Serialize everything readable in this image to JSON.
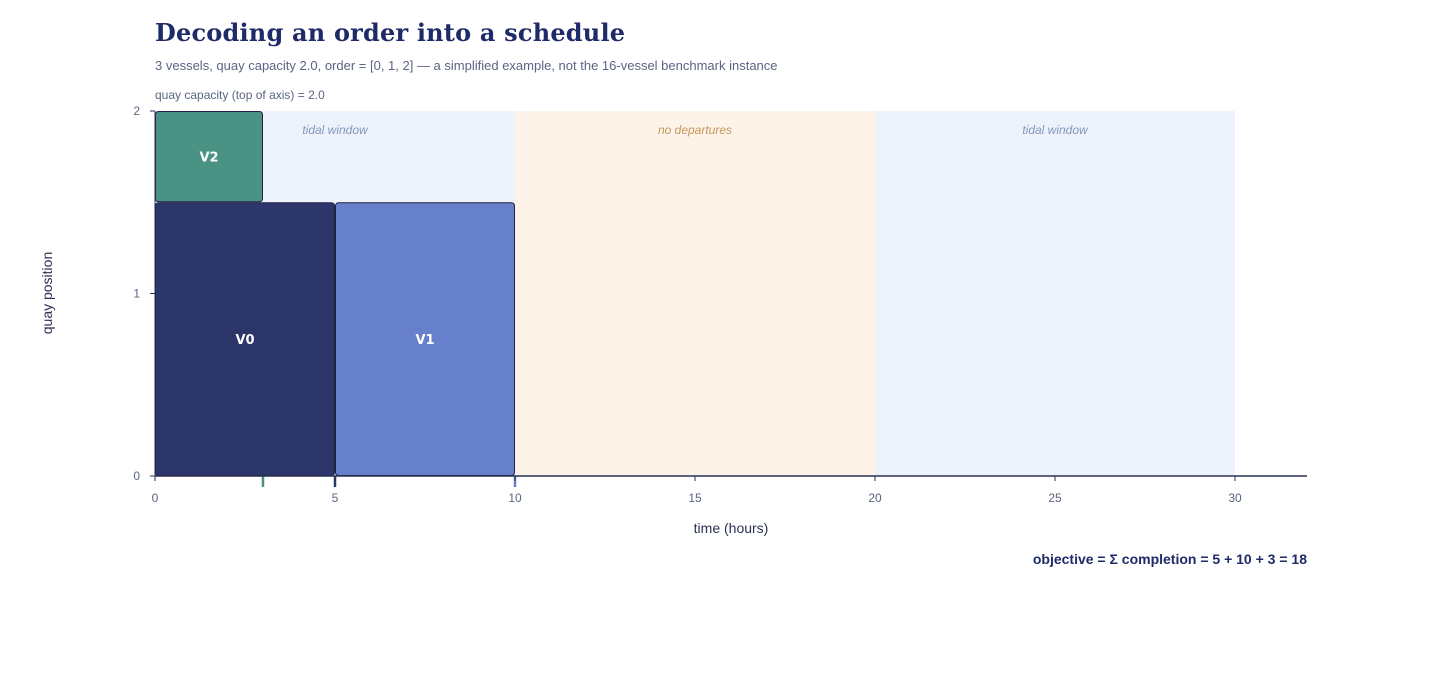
{
  "title": "Decoding an order into a schedule",
  "subtitle": "3 vessels, quay capacity 2.0, order = [0, 1, 2] — a simplified example, not the 16-vessel benchmark instance",
  "capacity_label": "quay capacity (top of axis) = 2.0",
  "ylabel": "quay position",
  "xlabel": "time (hours)",
  "objective": "objective = Σ completion = 5 + 10 + 3 = 18",
  "chart_data": {
    "type": "schedule",
    "xlim": [
      0,
      32
    ],
    "ylim": [
      0,
      2
    ],
    "x_ticks": [
      0,
      5,
      10,
      15,
      20,
      25,
      30
    ],
    "y_ticks": [
      0,
      1,
      2
    ],
    "windows": [
      {
        "label": "tidal window",
        "start": 0,
        "end": 10,
        "fill": "#eef3fb",
        "text_color": "#8196bd"
      },
      {
        "label": "no departures",
        "start": 10,
        "end": 20,
        "fill": "#fdf3e8",
        "text_color": "#c4975a"
      },
      {
        "label": "tidal window",
        "start": 20,
        "end": 30,
        "fill": "#eef3fb",
        "text_color": "#8196bd"
      }
    ],
    "vessels": [
      {
        "name": "V0",
        "start": 0,
        "end": 5,
        "pos_from": 0,
        "pos_to": 1.5,
        "fill": "#2d366b",
        "completion": 5
      },
      {
        "name": "V1",
        "start": 5,
        "end": 10,
        "pos_from": 0,
        "pos_to": 1.5,
        "fill": "#6780cb",
        "completion": 10
      },
      {
        "name": "V2",
        "start": 0,
        "end": 3,
        "pos_from": 1.5,
        "pos_to": 2,
        "fill": "#4a9283",
        "completion": 3
      }
    ]
  }
}
